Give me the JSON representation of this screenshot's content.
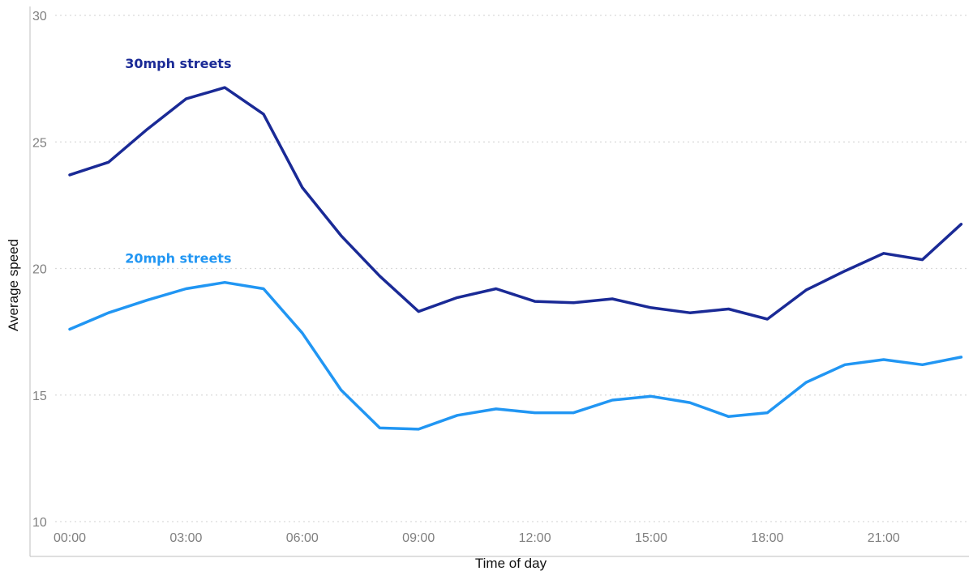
{
  "chart_data": {
    "type": "line",
    "title": "",
    "xlabel": "Time of day",
    "ylabel": "Average speed",
    "ylim": [
      10,
      30
    ],
    "yticks": [
      "10",
      "15",
      "20",
      "25",
      "30"
    ],
    "x": [
      "00:00",
      "01:00",
      "02:00",
      "03:00",
      "04:00",
      "05:00",
      "06:00",
      "07:00",
      "08:00",
      "09:00",
      "10:00",
      "11:00",
      "12:00",
      "13:00",
      "14:00",
      "15:00",
      "16:00",
      "17:00",
      "18:00",
      "19:00",
      "20:00",
      "21:00",
      "22:00",
      "23:00"
    ],
    "xticks": [
      "00:00",
      "03:00",
      "06:00",
      "09:00",
      "12:00",
      "15:00",
      "18:00",
      "21:00"
    ],
    "grid": "horizontal dotted",
    "legend": "inline labels",
    "series": [
      {
        "name": "30mph streets",
        "color": "#1a2a96",
        "values": [
          23.7,
          24.2,
          25.5,
          26.7,
          27.15,
          26.1,
          23.2,
          21.3,
          19.7,
          18.3,
          18.85,
          19.2,
          18.7,
          18.65,
          18.8,
          18.45,
          18.25,
          18.4,
          18.0,
          19.15,
          19.9,
          20.6,
          20.35,
          21.75
        ]
      },
      {
        "name": "20mph streets",
        "color": "#2196f3",
        "values": [
          17.6,
          18.25,
          18.75,
          19.2,
          19.45,
          19.2,
          17.45,
          15.2,
          13.7,
          13.65,
          14.2,
          14.45,
          14.3,
          14.3,
          14.8,
          14.95,
          14.7,
          14.15,
          14.3,
          15.5,
          16.2,
          16.4,
          16.2,
          16.5
        ]
      }
    ]
  }
}
